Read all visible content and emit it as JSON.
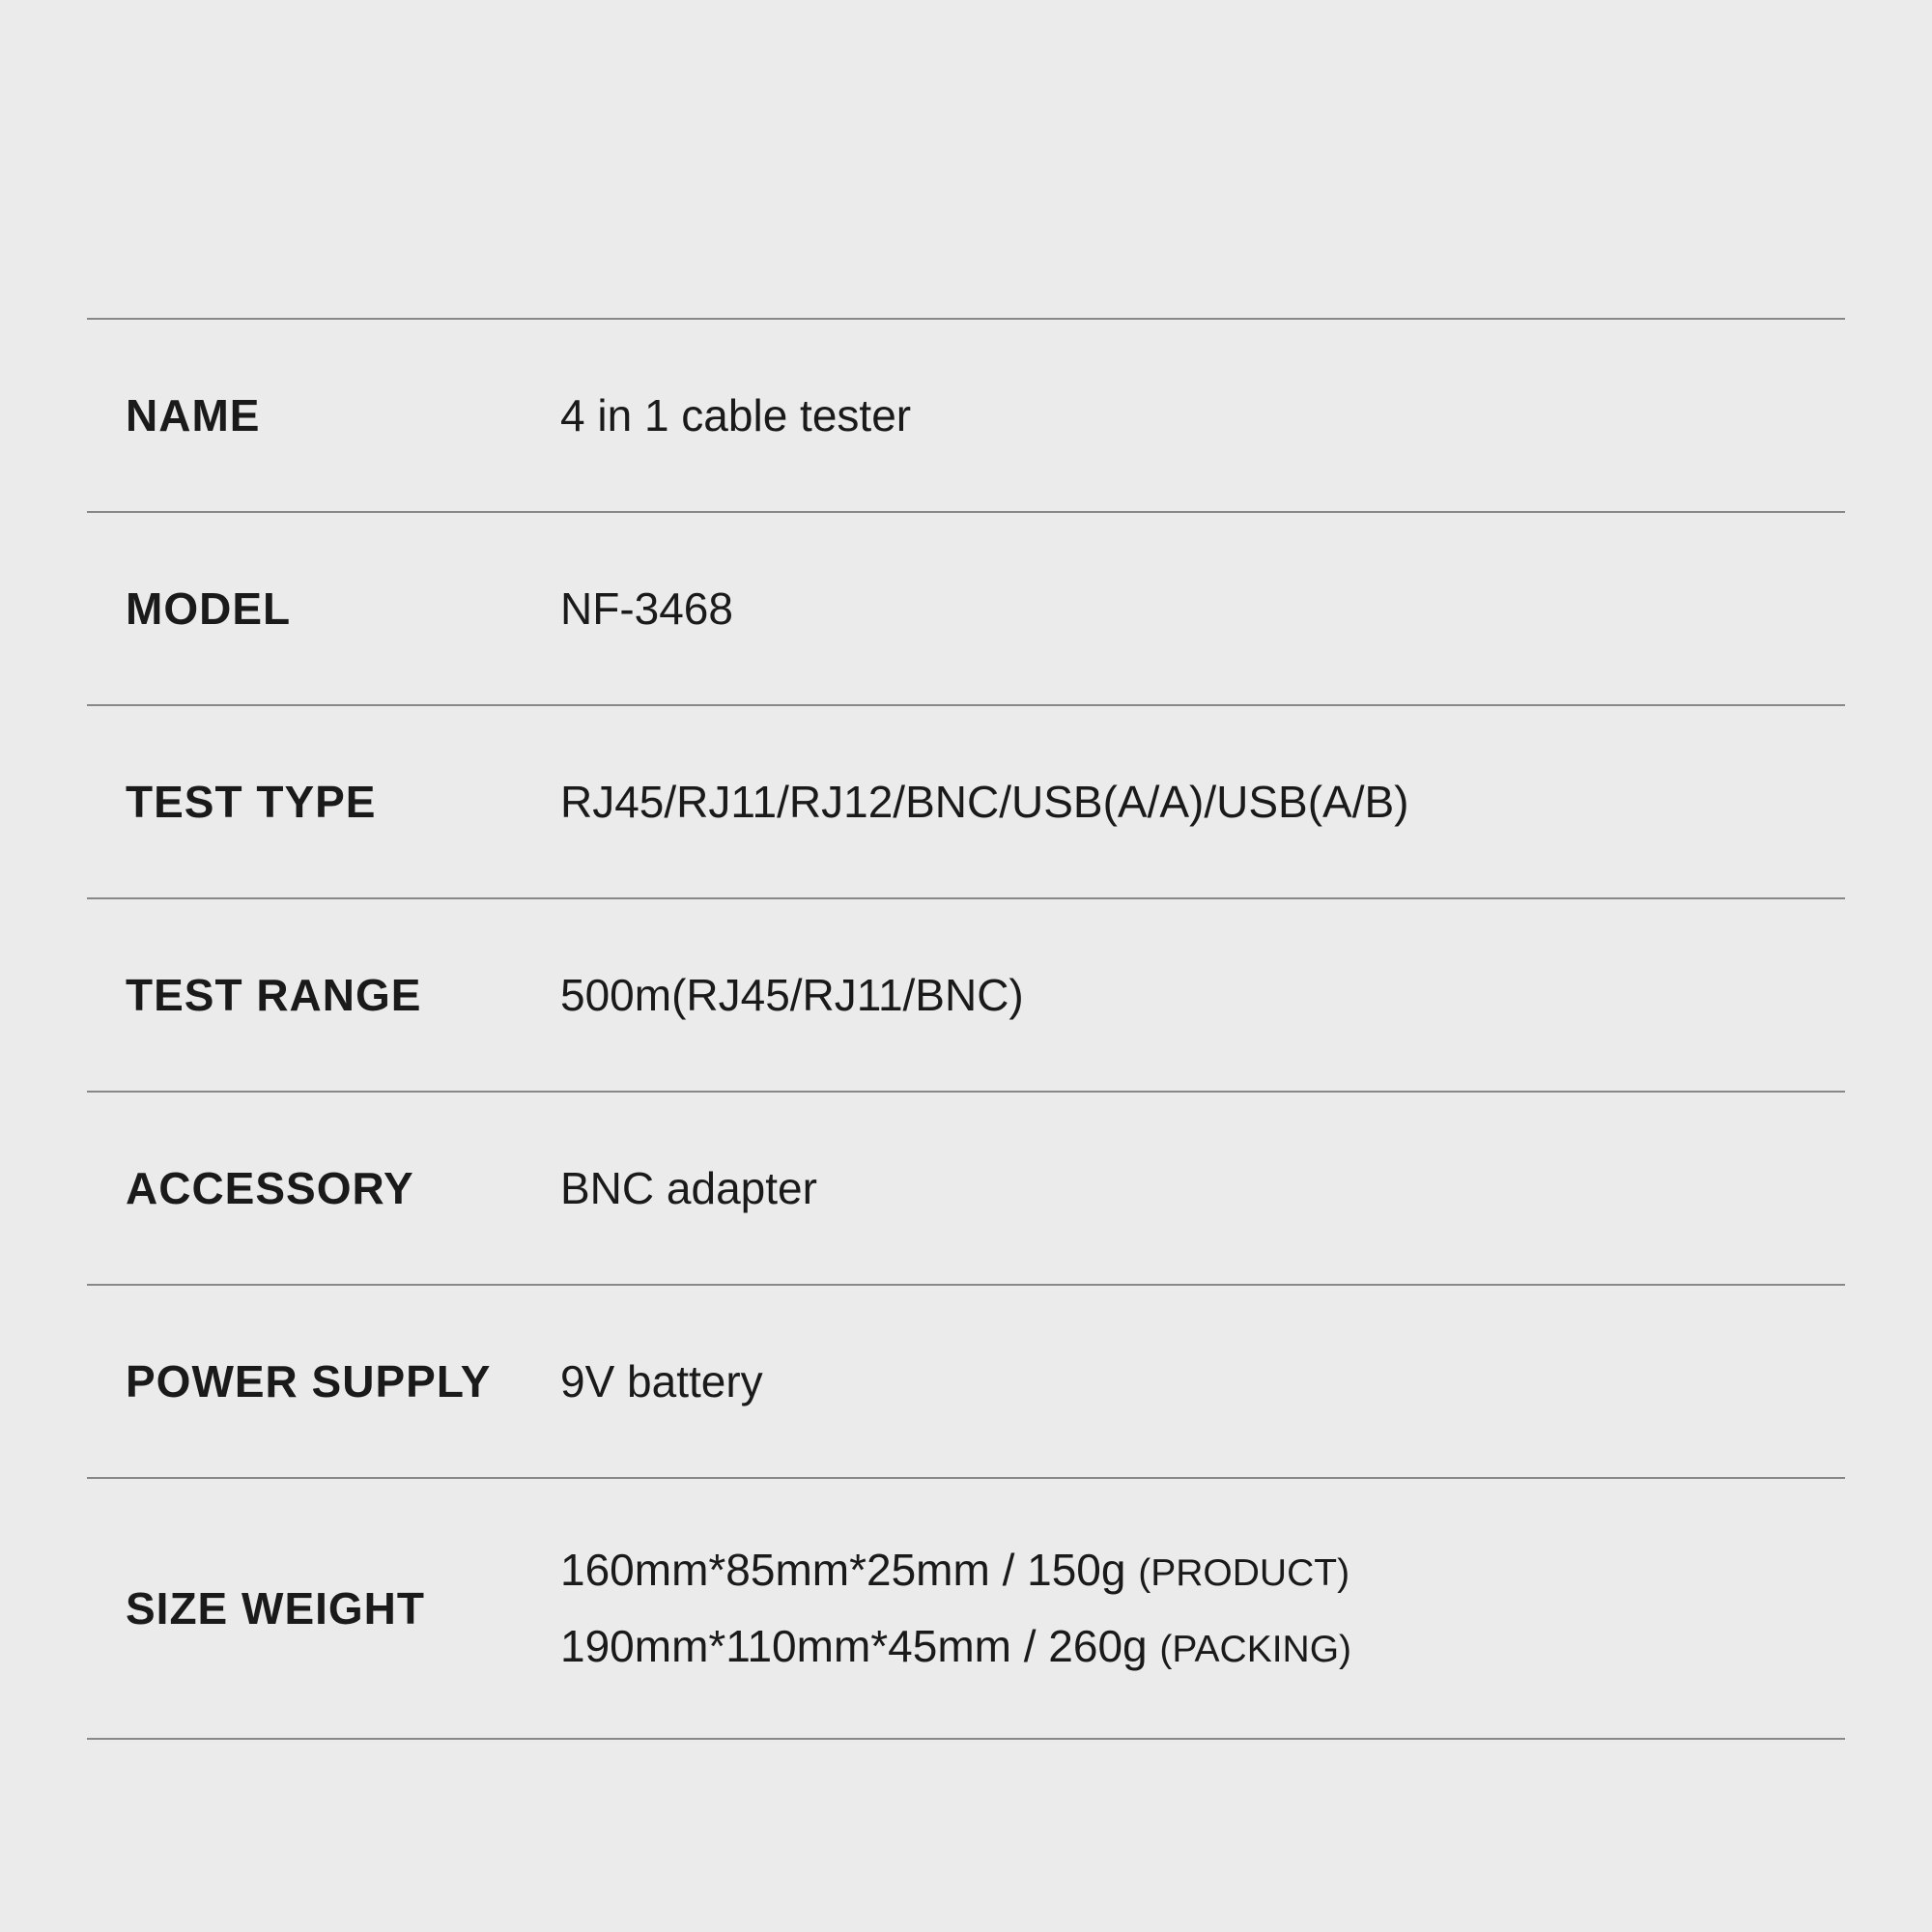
{
  "table": {
    "background_color": "#ebebeb",
    "border_color": "#888888",
    "text_color": "#1a1a1a",
    "label_font_size": 46,
    "label_font_weight": 700,
    "value_font_size": 46,
    "value_font_weight": 400,
    "sub_label_font_size": 39,
    "rows": [
      {
        "label": "NAME",
        "value": "4 in 1 cable tester"
      },
      {
        "label": "MODEL",
        "value": "NF-3468"
      },
      {
        "label": "TEST TYPE",
        "value": "RJ45/RJ11/RJ12/BNC/USB(A/A)/USB(A/B)"
      },
      {
        "label": "TEST RANGE",
        "value": "500m(RJ45/RJ11/BNC)"
      },
      {
        "label": "ACCESSORY",
        "value": "BNC adapter"
      },
      {
        "label": "POWER SUPPLY",
        "value": "9V battery"
      },
      {
        "label": "SIZE WEIGHT",
        "line1_value": "160mm*85mm*25mm / 150g ",
        "line1_sub": "(PRODUCT)",
        "line2_value": "190mm*110mm*45mm / 260g",
        "line2_sub": "(PACKING)"
      }
    ]
  }
}
